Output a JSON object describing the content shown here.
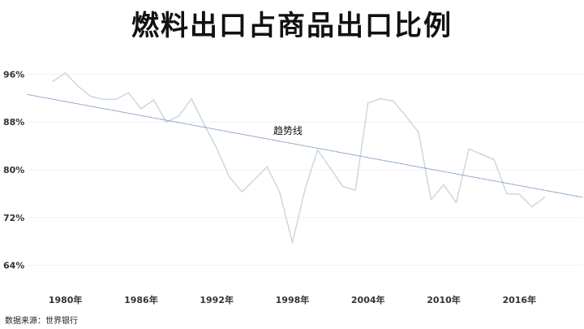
{
  "chart_data": {
    "type": "line",
    "title": "燃料出口占商品出口比例",
    "source": "数据来源：世界银行",
    "ylim": [
      60,
      100
    ],
    "xlim": [
      1977,
      2021
    ],
    "yticks": [
      {
        "value": 64,
        "label": "64%"
      },
      {
        "value": 72,
        "label": "72%"
      },
      {
        "value": 80,
        "label": "80%"
      },
      {
        "value": 88,
        "label": "88%"
      },
      {
        "value": 96,
        "label": "96%"
      }
    ],
    "xticks": [
      {
        "value": 1980,
        "label": "1980年"
      },
      {
        "value": 1986,
        "label": "1986年"
      },
      {
        "value": 1992,
        "label": "1992年"
      },
      {
        "value": 1998,
        "label": "1998年"
      },
      {
        "value": 2004,
        "label": "2004年"
      },
      {
        "value": 2010,
        "label": "2010年"
      },
      {
        "value": 2016,
        "label": "2016年"
      }
    ],
    "grid": true,
    "series": [
      {
        "color": "#cfd6de",
        "x": [
          1979,
          1980,
          1981,
          1982,
          1983,
          1984,
          1985,
          1986,
          1987,
          1988,
          1989,
          1990,
          1991,
          1992,
          1993,
          1994,
          1995,
          1996,
          1997,
          1998,
          1999,
          2000,
          2001,
          2002,
          2003,
          2004,
          2005,
          2006,
          2007,
          2008,
          2009,
          2010,
          2011,
          2012,
          2013,
          2014,
          2015,
          2016,
          2017,
          2018
        ],
        "y": [
          94.8,
          96.2,
          94.0,
          92.3,
          91.8,
          91.8,
          92.9,
          90.2,
          91.7,
          88.0,
          89.0,
          91.9,
          87.6,
          83.6,
          78.8,
          76.3,
          78.4,
          80.5,
          76.2,
          67.8,
          76.7,
          83.3,
          80.3,
          77.2,
          76.6,
          91.2,
          91.9,
          91.5,
          89.0,
          86.3,
          75.0,
          77.5,
          74.5,
          83.5,
          82.6,
          81.7,
          76.0,
          75.9,
          73.8,
          75.4
        ]
      }
    ],
    "trendline": {
      "label": "趋势线",
      "color": "#4a76a8",
      "x": [
        1977,
        2021
      ],
      "y": [
        92.6,
        75.4
      ]
    }
  }
}
